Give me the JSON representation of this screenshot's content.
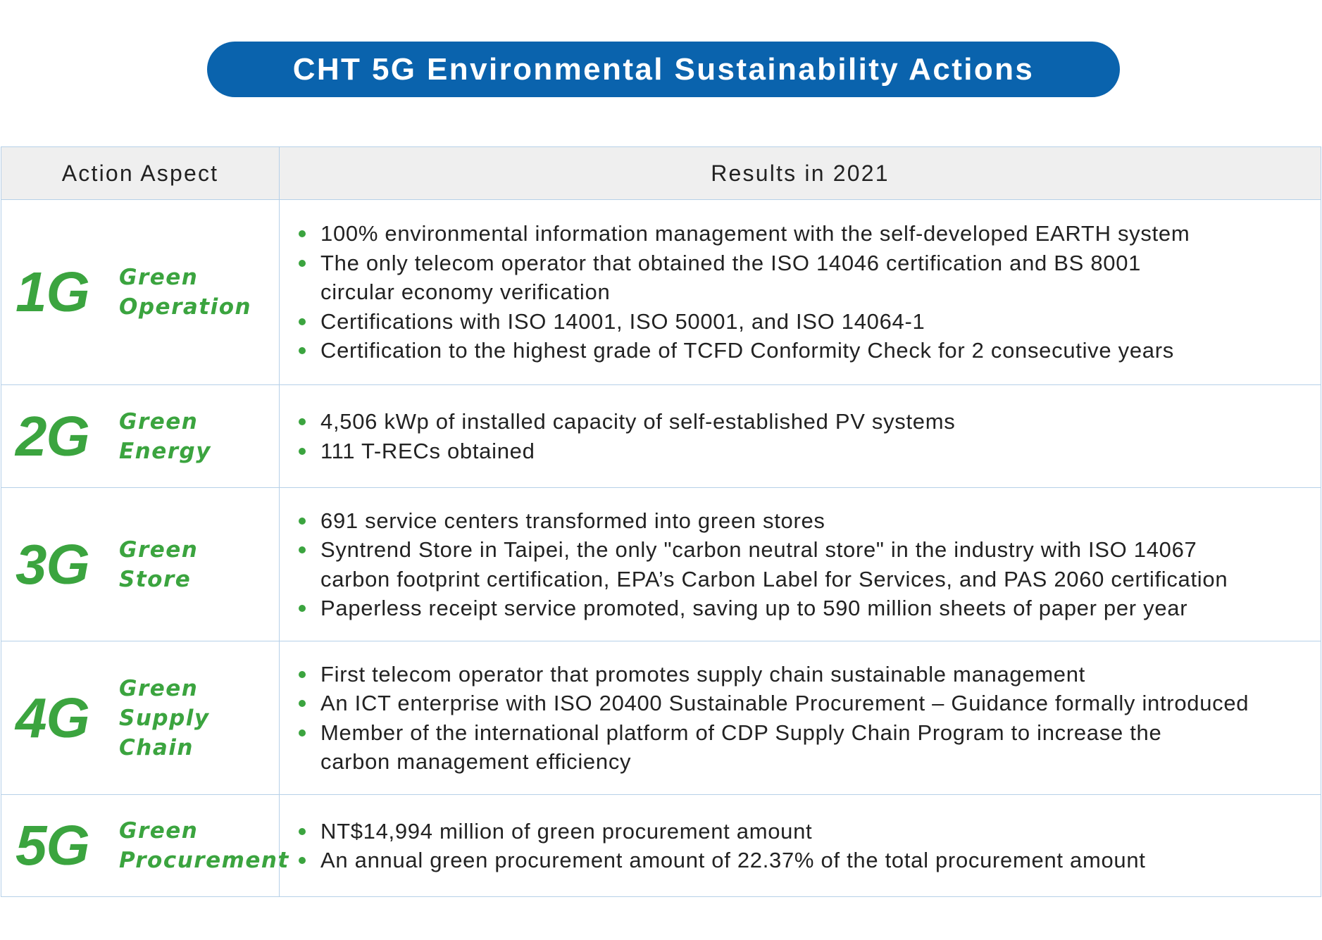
{
  "title": "CHT 5G Environmental Sustainability Actions",
  "table": {
    "headers": {
      "aspect": "Action Aspect",
      "results": "Results in 2021"
    },
    "rows": [
      {
        "number": "1G",
        "name_lines": [
          "Green",
          "Operation"
        ],
        "results": [
          "100% environmental information management with the self-developed EARTH system",
          "The only telecom operator that obtained the ISO 14046 certification and BS 8001\ncircular economy verification",
          "Certifications with ISO 14001, ISO 50001, and ISO 14064-1",
          "Certification to the highest grade of TCFD Conformity Check for 2 consecutive years"
        ]
      },
      {
        "number": "2G",
        "name_lines": [
          "Green",
          "Energy"
        ],
        "results": [
          "4,506 kWp of installed capacity of self-established PV systems",
          "111 T-RECs obtained"
        ]
      },
      {
        "number": "3G",
        "name_lines": [
          "Green",
          "Store"
        ],
        "results": [
          "691 service centers transformed into green stores",
          "Syntrend Store in Taipei, the only \"carbon neutral store\" in the industry with ISO 14067\ncarbon footprint certification, EPA’s Carbon Label for Services, and PAS 2060 certification",
          "Paperless receipt service promoted, saving up to 590 million sheets of paper per year"
        ]
      },
      {
        "number": "4G",
        "name_lines": [
          "Green",
          "Supply",
          "Chain"
        ],
        "results": [
          "First telecom operator that promotes supply chain sustainable management",
          "An ICT enterprise with ISO 20400 Sustainable Procurement – Guidance formally introduced",
          "Member of the international platform of CDP Supply Chain Program to increase the\ncarbon management efficiency"
        ]
      },
      {
        "number": "5G",
        "name_lines": [
          "Green",
          "Procurement"
        ],
        "results": [
          "NT$14,994 million of green procurement amount",
          "An annual green procurement amount of 22.37% of the total procurement amount"
        ]
      }
    ]
  }
}
